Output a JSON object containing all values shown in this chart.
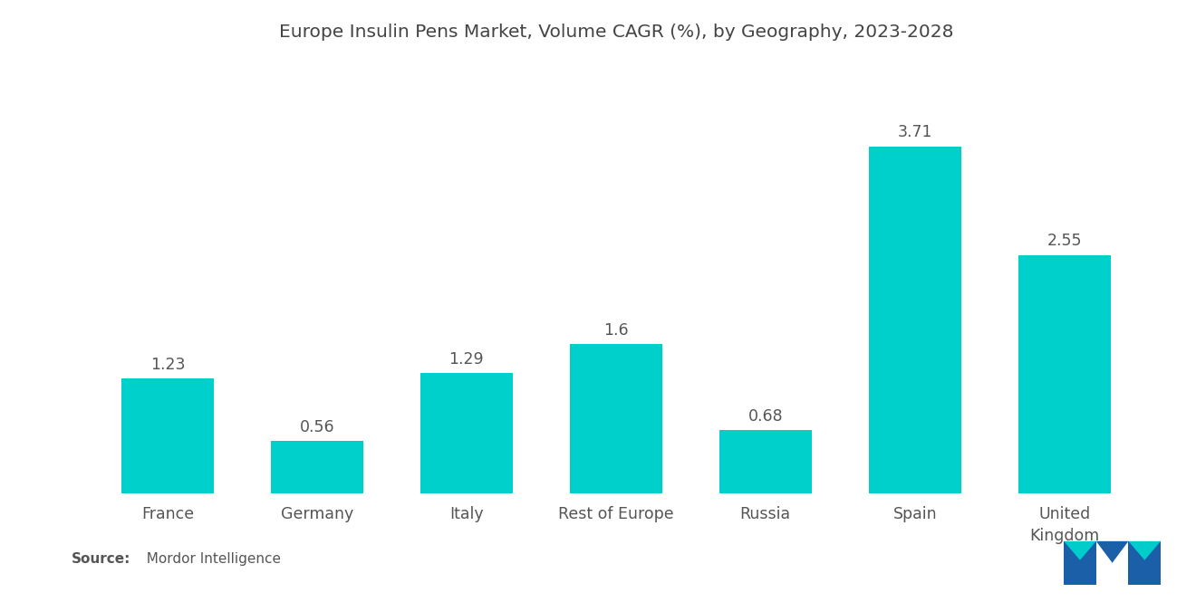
{
  "title": "Europe Insulin Pens Market, Volume CAGR (%), by Geography, 2023-2028",
  "categories": [
    "France",
    "Germany",
    "Italy",
    "Rest of Europe",
    "Russia",
    "Spain",
    "United\nKingdom"
  ],
  "values": [
    1.23,
    0.56,
    1.29,
    1.6,
    0.68,
    3.71,
    2.55
  ],
  "bar_color": "#00D0CC",
  "background_color": "#FFFFFF",
  "ylim": [
    0,
    4.5
  ],
  "title_fontsize": 14.5,
  "label_fontsize": 12.5,
  "value_fontsize": 12.5,
  "bar_width": 0.62,
  "source_bold": "Source:",
  "source_normal": "  Mordor Intelligence",
  "source_fontsize": 11
}
